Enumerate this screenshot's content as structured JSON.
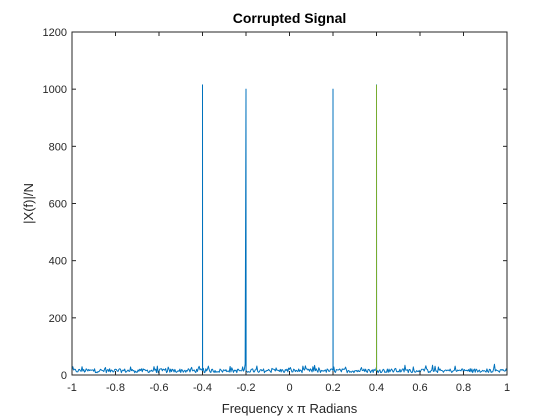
{
  "chart_data": {
    "type": "line",
    "title": "Corrupted Signal",
    "xlabel": "Frequency x π Radians",
    "ylabel": "|X(f)|/N",
    "xlim": [
      -1,
      1
    ],
    "ylim": [
      0,
      1200
    ],
    "xticks": [
      -1,
      -0.8,
      -0.6,
      -0.4,
      -0.2,
      0,
      0.2,
      0.4,
      0.6,
      0.8,
      1
    ],
    "xtick_labels": [
      "-1",
      "-0.8",
      "-0.6",
      "-0.4",
      "-0.2",
      "0",
      "0.2",
      "0.4",
      "0.6",
      "0.8",
      "1"
    ],
    "yticks": [
      0,
      200,
      400,
      600,
      800,
      1000,
      1200
    ],
    "ytick_labels": [
      "0",
      "200",
      "400",
      "600",
      "800",
      "1000",
      "1200"
    ],
    "grid": false,
    "series": [
      {
        "color": "#0072BD",
        "noise_floor_range": [
          0,
          40
        ],
        "peaks": [
          {
            "x": -0.4,
            "y": 1015
          },
          {
            "x": -0.2,
            "y": 1000
          },
          {
            "x": 0.2,
            "y": 1000
          },
          {
            "x": 0.4,
            "y": 1015
          }
        ]
      }
    ],
    "peak_accent_color": "#77AC30"
  }
}
